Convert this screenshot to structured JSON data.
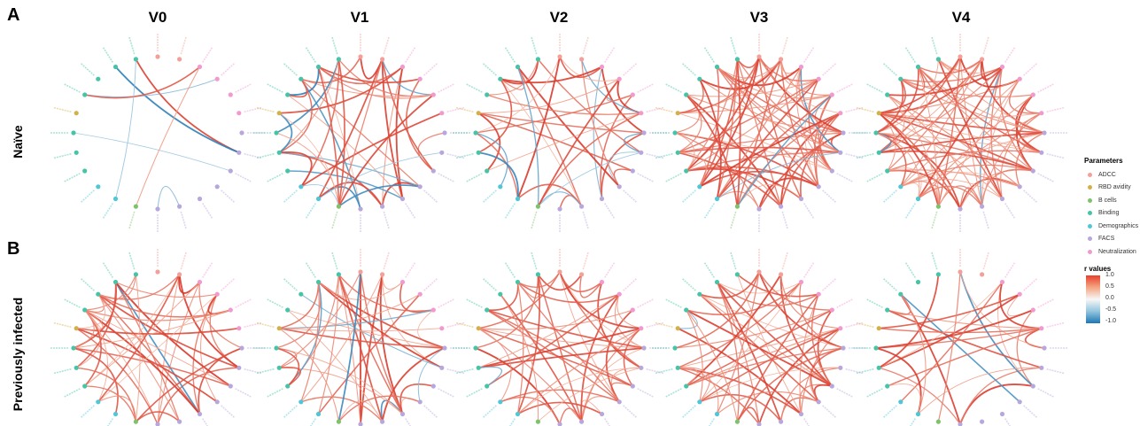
{
  "panels": [
    {
      "letter": "A",
      "group": "Naïve"
    },
    {
      "letter": "B",
      "group": "Previously infected"
    }
  ],
  "visits": [
    "V0",
    "V1",
    "V2",
    "V3",
    "V4"
  ],
  "legend": {
    "parameters_title": "Parameters",
    "parameters": [
      {
        "label": "ADCC",
        "color": "#f4a09a"
      },
      {
        "label": "RBD avidity",
        "color": "#d4b04a"
      },
      {
        "label": "B cells",
        "color": "#7cc36a"
      },
      {
        "label": "Binding",
        "color": "#45c4a8"
      },
      {
        "label": "Demographics",
        "color": "#4fc7d6"
      },
      {
        "label": "FACS",
        "color": "#b7a7dc"
      },
      {
        "label": "Neutralization",
        "color": "#f29ad0"
      }
    ],
    "r_title": "r values",
    "r_ticks": [
      "1.0",
      "0.5",
      "0.0",
      "-0.5",
      "-1.0"
    ],
    "r_colors": {
      "high": "#e8412d",
      "mid": "#f7f7f7",
      "low": "#1f78b4"
    }
  },
  "node_categories": [
    "FACS",
    "FACS",
    "FACS",
    "FACS",
    "FACS",
    "FACS",
    "FACS",
    "Neutralization",
    "Neutralization",
    "Neutralization",
    "Neutralization",
    "ADCC",
    "ADCC",
    "Binding",
    "Binding",
    "Binding",
    "Binding",
    "RBD avidity",
    "Binding",
    "Binding",
    "Binding",
    "Demographics",
    "Demographics",
    "B cells"
  ],
  "network_density": [
    [
      0.08,
      0.45,
      0.35,
      0.85,
      0.9
    ],
    [
      0.55,
      0.5,
      0.55,
      0.55,
      0.3
    ]
  ],
  "network_negative_share": [
    [
      0.55,
      0.2,
      0.1,
      0.06,
      0.03
    ],
    [
      0.03,
      0.08,
      0.02,
      0.04,
      0.04
    ]
  ]
}
